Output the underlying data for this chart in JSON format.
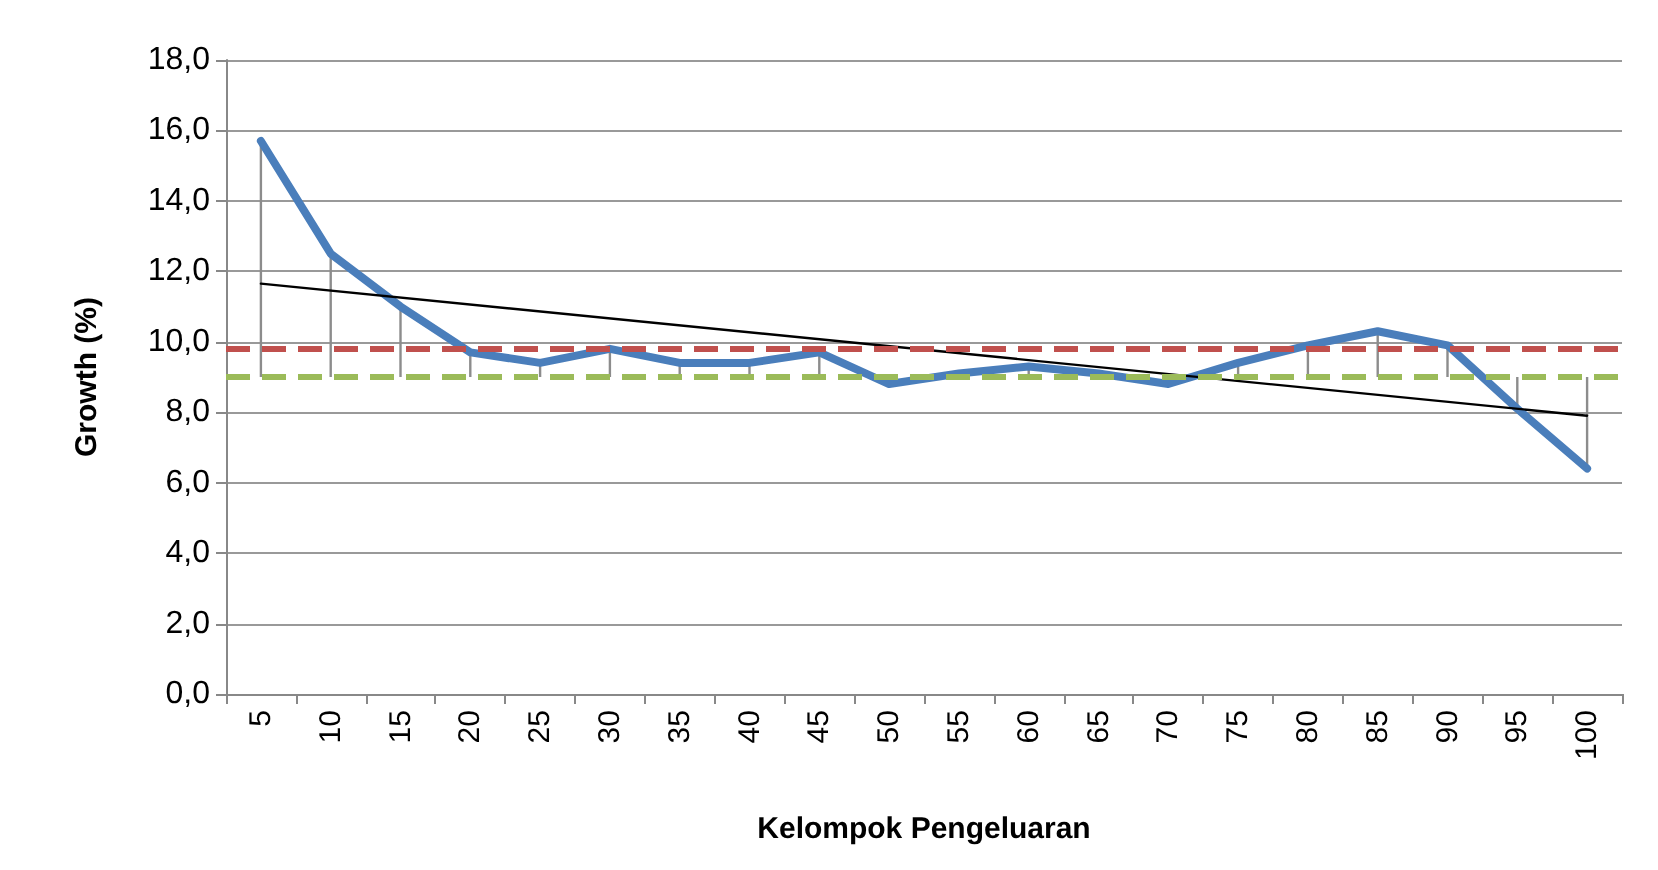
{
  "chart_data": {
    "type": "line",
    "xlabel": "Kelompok Pengeluaran",
    "ylabel": "Growth (%)",
    "categories": [
      "5",
      "10",
      "15",
      "20",
      "25",
      "30",
      "35",
      "40",
      "45",
      "50",
      "55",
      "60",
      "65",
      "70",
      "75",
      "80",
      "85",
      "90",
      "95",
      "100"
    ],
    "series": [
      {
        "color": "#4a7ebb",
        "values": [
          15.7,
          12.5,
          11.0,
          9.7,
          9.4,
          9.8,
          9.4,
          9.4,
          9.7,
          8.8,
          9.1,
          9.3,
          9.1,
          8.8,
          9.4,
          9.9,
          10.3,
          9.9,
          8.1,
          6.4
        ],
        "errors": [
          [
            9.0,
            15.7
          ],
          [
            9.0,
            12.5
          ],
          [
            9.0,
            11.0
          ],
          [
            9.0,
            9.7
          ],
          [
            9.0,
            9.4
          ],
          [
            9.0,
            9.8
          ],
          [
            9.0,
            9.4
          ],
          [
            9.0,
            9.4
          ],
          [
            9.0,
            9.7
          ],
          null,
          [
            9.0,
            9.1
          ],
          [
            9.0,
            9.3
          ],
          [
            9.0,
            9.1
          ],
          [
            8.8,
            9.0
          ],
          [
            9.0,
            9.4
          ],
          [
            9.0,
            9.9
          ],
          [
            9.0,
            10.3
          ],
          [
            9.0,
            9.9
          ],
          [
            8.1,
            9.0
          ],
          [
            6.4,
            9.0
          ]
        ]
      },
      {
        "type": "line",
        "color": "#000000",
        "x": [
          "5",
          "100"
        ],
        "values": [
          11.65,
          7.9
        ]
      }
    ],
    "ref_lines": [
      {
        "axis": "y",
        "value": 9.8,
        "color": "#c0504d",
        "line_style": "dashed"
      },
      {
        "axis": "y",
        "value": 9.0,
        "color": "#9bbb59",
        "line_style": "dashed"
      }
    ],
    "ylim": [
      0,
      18
    ],
    "yticks": [
      {
        "value": 0,
        "label": "0,0"
      },
      {
        "value": 2,
        "label": "2,0"
      },
      {
        "value": 4,
        "label": "4,0"
      },
      {
        "value": 6,
        "label": "6,0"
      },
      {
        "value": 8,
        "label": "8,0"
      },
      {
        "value": 10,
        "label": "10,0"
      },
      {
        "value": 12,
        "label": "12,0"
      },
      {
        "value": 14,
        "label": "14,0"
      },
      {
        "value": 16,
        "label": "16,0"
      },
      {
        "value": 18,
        "label": "18,0"
      }
    ],
    "grid": "y",
    "marker": "none"
  }
}
